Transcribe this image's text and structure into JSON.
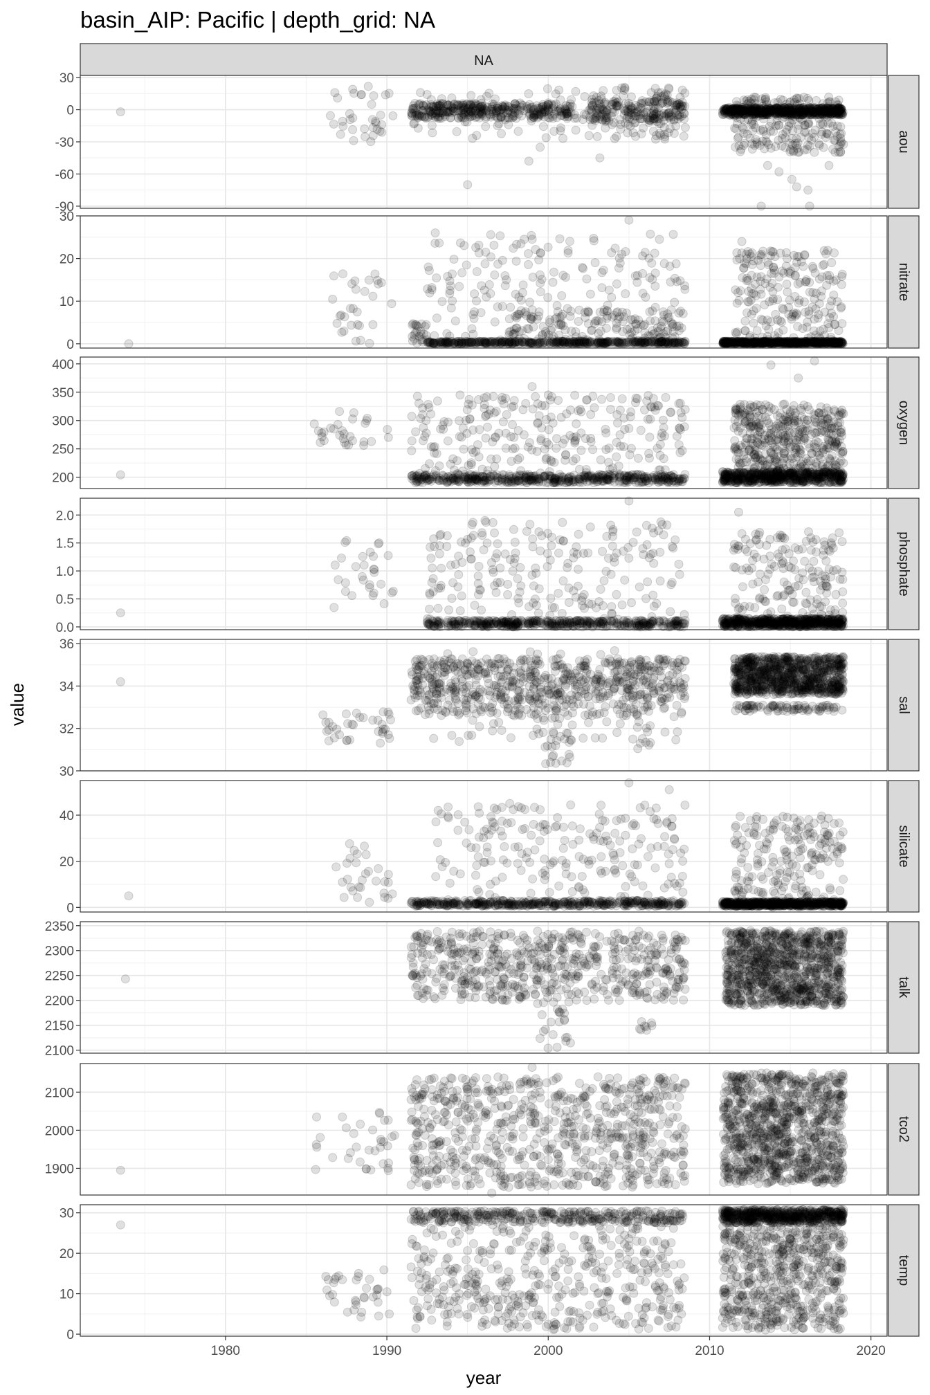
{
  "chart_data": {
    "type": "scatter",
    "title": "basin_AIP: Pacific | depth_grid: NA",
    "xlabel": "year",
    "ylabel": "value",
    "column_strip": "NA",
    "xlim": [
      1971,
      2021
    ],
    "x_ticks": [
      1980,
      1990,
      2000,
      2010,
      2020
    ],
    "x_tick_labels": [
      "1980",
      "1990",
      "2000",
      "2010",
      "2020"
    ],
    "point_color": "#000000",
    "point_opacity": 0.12,
    "grid": true,
    "legend": "none",
    "panels": [
      {
        "name": "aou",
        "ylim": [
          -92,
          32
        ],
        "ticks": [
          30,
          0,
          -30,
          -60,
          -90
        ],
        "tick_labels": [
          "30",
          "0",
          "-30",
          "-60",
          "-90"
        ],
        "clusters": [
          {
            "x": [
              1973.5,
              1973.5
            ],
            "y": [
              -2,
              -2
            ],
            "n": 1
          },
          {
            "x": [
              1986,
              1990.5
            ],
            "y": [
              -30,
              22
            ],
            "n": 35
          },
          {
            "x": [
              1991.5,
              1997
            ],
            "y": [
              -8,
              6
            ],
            "n": 220
          },
          {
            "x": [
              1991.5,
              2008.5
            ],
            "y": [
              -28,
              20
            ],
            "n": 120
          },
          {
            "x": [
              1997,
              2001.5
            ],
            "y": [
              -8,
              6
            ],
            "n": 140
          },
          {
            "x": [
              2002.5,
              2008.5
            ],
            "y": [
              -10,
              8
            ],
            "n": 160
          },
          {
            "x": [
              2002.5,
              2008.5
            ],
            "y": [
              -25,
              25
            ],
            "n": 70
          },
          {
            "x": [
              2010.8,
              2018.3
            ],
            "y": [
              -5,
              2
            ],
            "n": 600
          },
          {
            "x": [
              2011.5,
              2018.3
            ],
            "y": [
              -40,
              12
            ],
            "n": 240
          }
        ],
        "points": [
          [
            1995,
            -70
          ],
          [
            1998.8,
            -48
          ],
          [
            1999.5,
            -35
          ],
          [
            2003.2,
            -45
          ],
          [
            2013.6,
            -52
          ],
          [
            2014.3,
            -58
          ],
          [
            2015.1,
            -65
          ],
          [
            2015.4,
            -72
          ],
          [
            2016.1,
            -75
          ],
          [
            2013.2,
            -90
          ],
          [
            2016.2,
            -90
          ],
          [
            2017.4,
            -52
          ]
        ]
      },
      {
        "name": "nitrate",
        "ylim": [
          -1,
          30
        ],
        "ticks": [
          0,
          10,
          20,
          30
        ],
        "tick_labels": [
          "0",
          "10",
          "20",
          "30"
        ],
        "clusters": [
          {
            "x": [
              1974,
              1974
            ],
            "y": [
              0,
              0
            ],
            "n": 1
          },
          {
            "x": [
              1986.5,
              1990.5
            ],
            "y": [
              0,
              17
            ],
            "n": 30
          },
          {
            "x": [
              1991.5,
              1992.5
            ],
            "y": [
              0,
              5
            ],
            "n": 25
          },
          {
            "x": [
              1992.5,
              2008.5
            ],
            "y": [
              0,
              0.6
            ],
            "n": 450
          },
          {
            "x": [
              1992.5,
              2008.5
            ],
            "y": [
              0,
              26
            ],
            "n": 200
          },
          {
            "x": [
              1997.5,
              2008.5
            ],
            "y": [
              0,
              8
            ],
            "n": 150
          },
          {
            "x": [
              2010.8,
              2018.3
            ],
            "y": [
              0,
              0.6
            ],
            "n": 600
          },
          {
            "x": [
              2011.5,
              2018.3
            ],
            "y": [
              0,
              22
            ],
            "n": 220
          }
        ],
        "points": [
          [
            1993,
            26
          ],
          [
            2005,
            29
          ],
          [
            2012,
            24
          ]
        ]
      },
      {
        "name": "oxygen",
        "ylim": [
          180,
          412
        ],
        "ticks": [
          200,
          250,
          300,
          350,
          400
        ],
        "tick_labels": [
          "200",
          "250",
          "300",
          "350",
          "400"
        ],
        "clusters": [
          {
            "x": [
              1973.5,
              1973.5
            ],
            "y": [
              204,
              204
            ],
            "n": 1
          },
          {
            "x": [
              1985.5,
              1990.5
            ],
            "y": [
              255,
              320
            ],
            "n": 30
          },
          {
            "x": [
              1991.5,
              2008.5
            ],
            "y": [
              190,
              205
            ],
            "n": 500
          },
          {
            "x": [
              1991.5,
              2008.5
            ],
            "y": [
              205,
              345
            ],
            "n": 260
          },
          {
            "x": [
              2010.8,
              2018.3
            ],
            "y": [
              190,
              210
            ],
            "n": 550
          },
          {
            "x": [
              2011.5,
              2018.3
            ],
            "y": [
              205,
              330
            ],
            "n": 450
          }
        ],
        "points": [
          [
            1999,
            360
          ],
          [
            2013.8,
            398
          ],
          [
            2016.5,
            405
          ],
          [
            2015.5,
            375
          ],
          [
            2000,
            345
          ]
        ]
      },
      {
        "name": "phosphate",
        "ylim": [
          -0.05,
          2.3
        ],
        "ticks": [
          0.0,
          0.5,
          1.0,
          1.5,
          2.0
        ],
        "tick_labels": [
          "0.0",
          "0.5",
          "1.0",
          "1.5",
          "2.0"
        ],
        "clusters": [
          {
            "x": [
              1973.5,
              1973.5
            ],
            "y": [
              0.25,
              0.25
            ],
            "n": 1
          },
          {
            "x": [
              1986.5,
              1990.5
            ],
            "y": [
              0.25,
              1.55
            ],
            "n": 30
          },
          {
            "x": [
              1992.5,
              2008.5
            ],
            "y": [
              0,
              0.12
            ],
            "n": 450
          },
          {
            "x": [
              1992.5,
              2008.5
            ],
            "y": [
              0,
              1.95
            ],
            "n": 230
          },
          {
            "x": [
              2010.8,
              2018.3
            ],
            "y": [
              0,
              0.15
            ],
            "n": 600
          },
          {
            "x": [
              2011.5,
              2018.3
            ],
            "y": [
              0.1,
              1.7
            ],
            "n": 180
          }
        ],
        "points": [
          [
            2005,
            2.25
          ],
          [
            2011.8,
            2.05
          ]
        ]
      },
      {
        "name": "sal",
        "ylim": [
          30,
          36.2
        ],
        "ticks": [
          30,
          32,
          34,
          36
        ],
        "tick_labels": [
          "30",
          "32",
          "34",
          "36"
        ],
        "clusters": [
          {
            "x": [
              1973.5,
              1973.5
            ],
            "y": [
              34.2,
              34.2
            ],
            "n": 1
          },
          {
            "x": [
              1985.8,
              1990.5
            ],
            "y": [
              31.3,
              32.8
            ],
            "n": 35
          },
          {
            "x": [
              1991.5,
              2008.5
            ],
            "y": [
              33.3,
              35.3
            ],
            "n": 550
          },
          {
            "x": [
              1991.5,
              2008.5
            ],
            "y": [
              32.6,
              33.2
            ],
            "n": 100
          },
          {
            "x": [
              1992,
              2008.5
            ],
            "y": [
              31.3,
              35.8
            ],
            "n": 120
          },
          {
            "x": [
              1999.5,
              2001.5
            ],
            "y": [
              30.3,
              32.3
            ],
            "n": 25
          },
          {
            "x": [
              2005.5,
              2006.5
            ],
            "y": [
              31,
              32.2
            ],
            "n": 10
          },
          {
            "x": [
              2011.5,
              2018.3
            ],
            "y": [
              33.6,
              35.4
            ],
            "n": 900
          },
          {
            "x": [
              2011.5,
              2018.3
            ],
            "y": [
              32.8,
              33.1
            ],
            "n": 80
          }
        ],
        "points": []
      },
      {
        "name": "silicate",
        "ylim": [
          -2,
          55
        ],
        "ticks": [
          0,
          20,
          40
        ],
        "tick_labels": [
          "0",
          "20",
          "40"
        ],
        "clusters": [
          {
            "x": [
              1974,
              1974
            ],
            "y": [
              5,
              5
            ],
            "n": 1
          },
          {
            "x": [
              1986.8,
              1990.5
            ],
            "y": [
              2,
              29
            ],
            "n": 30
          },
          {
            "x": [
              1991.5,
              2008.5
            ],
            "y": [
              0.5,
              3
            ],
            "n": 450
          },
          {
            "x": [
              1993,
              2008.5
            ],
            "y": [
              0,
              45
            ],
            "n": 220
          },
          {
            "x": [
              2010.8,
              2018.3
            ],
            "y": [
              0.5,
              2.5
            ],
            "n": 600
          },
          {
            "x": [
              2011.5,
              2018.3
            ],
            "y": [
              0,
              40
            ],
            "n": 220
          }
        ],
        "points": [
          [
            2005,
            54
          ],
          [
            2007.5,
            51
          ]
        ]
      },
      {
        "name": "talk",
        "ylim": [
          2094,
          2358
        ],
        "ticks": [
          2100,
          2150,
          2200,
          2250,
          2300,
          2350
        ],
        "tick_labels": [
          "2100",
          "2150",
          "2200",
          "2250",
          "2300",
          "2350"
        ],
        "clusters": [
          {
            "x": [
              1973.8,
              1973.8
            ],
            "y": [
              2243,
              2243
            ],
            "n": 1
          },
          {
            "x": [
              1991.5,
              2008.5
            ],
            "y": [
              2200,
              2340
            ],
            "n": 600
          },
          {
            "x": [
              1999.3,
              2001.5
            ],
            "y": [
              2100,
              2200
            ],
            "n": 25
          },
          {
            "x": [
              2005.5,
              2006.5
            ],
            "y": [
              2125,
              2160
            ],
            "n": 8
          },
          {
            "x": [
              2011,
              2018.3
            ],
            "y": [
              2190,
              2340
            ],
            "n": 1000
          }
        ],
        "points": []
      },
      {
        "name": "tco2",
        "ylim": [
          1830,
          2175
        ],
        "ticks": [
          1900,
          2000,
          2100
        ],
        "tick_labels": [
          "1900",
          "2000",
          "2100"
        ],
        "clusters": [
          {
            "x": [
              1973.5,
              1973.5
            ],
            "y": [
              1895,
              1895
            ],
            "n": 1
          },
          {
            "x": [
              1985.5,
              1990.5
            ],
            "y": [
              1890,
              2060
            ],
            "n": 35
          },
          {
            "x": [
              1991.5,
              2008.5
            ],
            "y": [
              1850,
              2140
            ],
            "n": 750
          },
          {
            "x": [
              2010.8,
              2018.3
            ],
            "y": [
              1860,
              2150
            ],
            "n": 1000
          }
        ],
        "points": [
          [
            1996.5,
            1835
          ],
          [
            1999,
            2165
          ]
        ]
      },
      {
        "name": "temp",
        "ylim": [
          -0.5,
          32
        ],
        "ticks": [
          0,
          10,
          20,
          30
        ],
        "tick_labels": [
          "0",
          "10",
          "20",
          "30"
        ],
        "clusters": [
          {
            "x": [
              1973.5,
              1973.5
            ],
            "y": [
              27,
              27
            ],
            "n": 1
          },
          {
            "x": [
              1986,
              1990.5
            ],
            "y": [
              4,
              16
            ],
            "n": 35
          },
          {
            "x": [
              1991.5,
              2008.5
            ],
            "y": [
              27.5,
              30.5
            ],
            "n": 350
          },
          {
            "x": [
              1991.5,
              2008.5
            ],
            "y": [
              1,
              27
            ],
            "n": 450
          },
          {
            "x": [
              2010.8,
              2018.3
            ],
            "y": [
              27.5,
              30.8
            ],
            "n": 600
          },
          {
            "x": [
              2010.8,
              2018.3
            ],
            "y": [
              1,
              27
            ],
            "n": 600
          }
        ],
        "points": []
      }
    ]
  }
}
